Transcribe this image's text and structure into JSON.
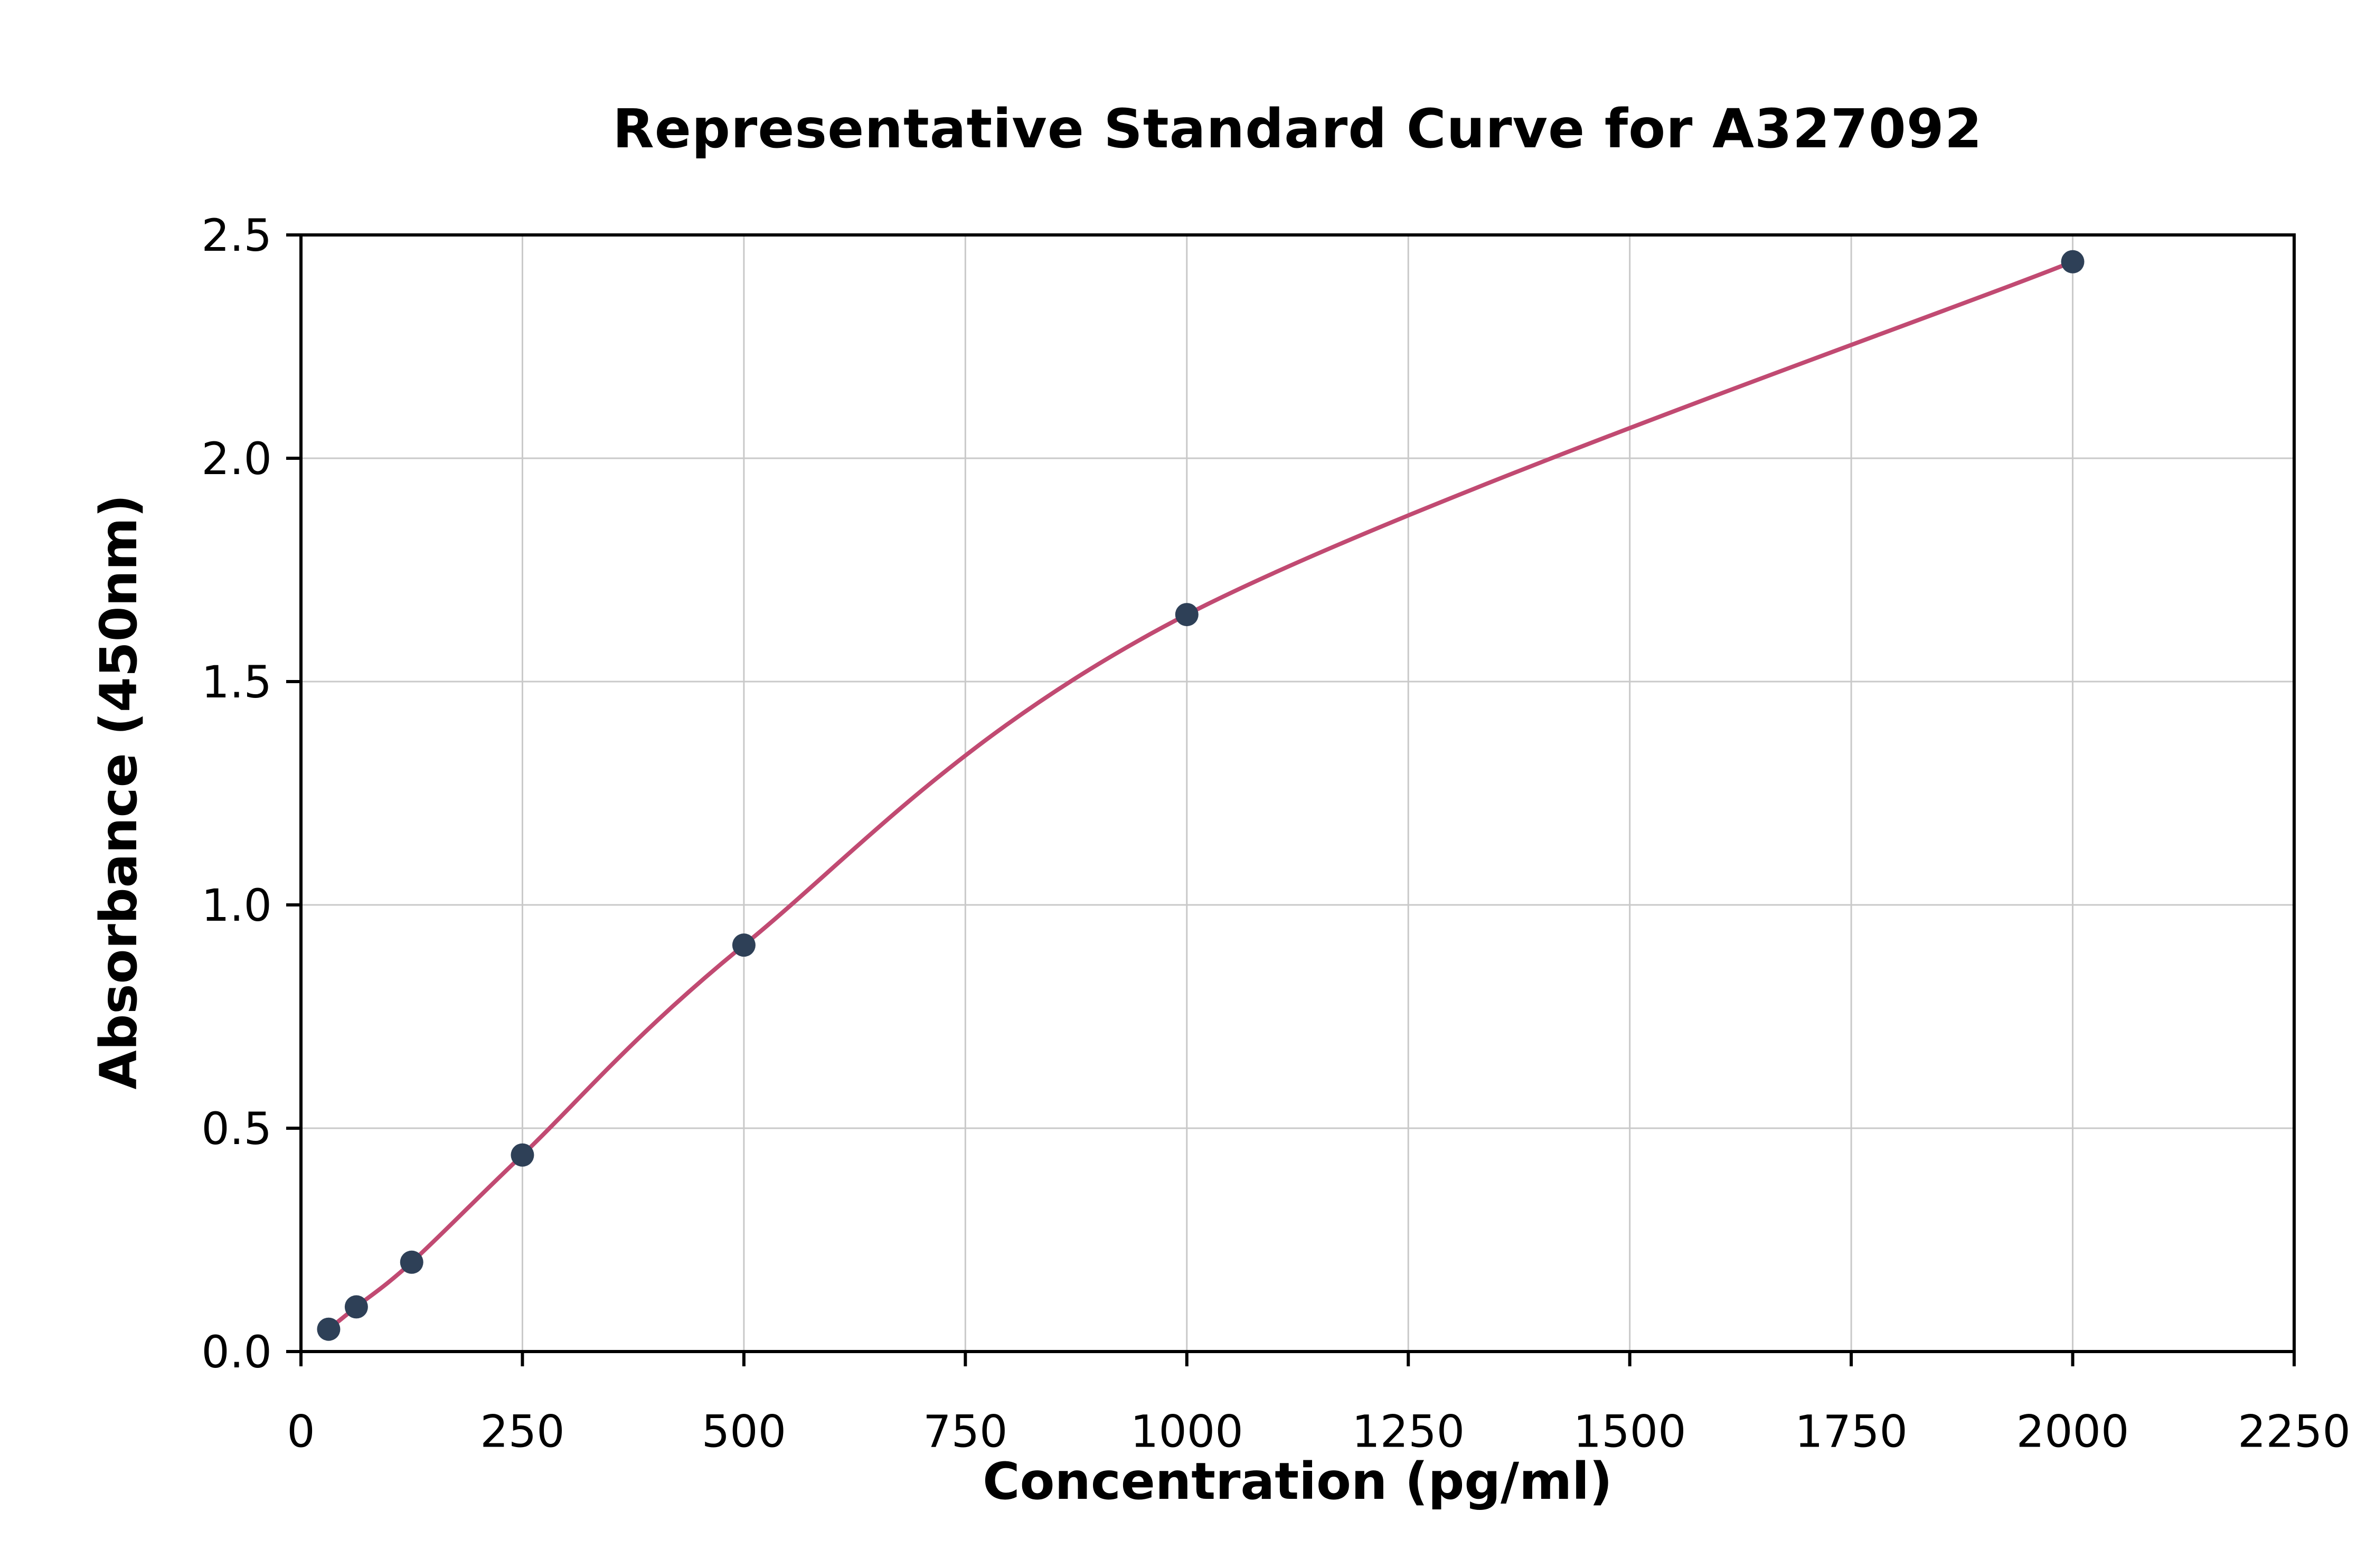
{
  "chart_data": {
    "type": "line",
    "title": "Representative Standard Curve for A327092",
    "xlabel": "Concentration (pg/ml)",
    "ylabel": "Absorbance (450nm)",
    "x": [
      31.25,
      62.5,
      125,
      250,
      500,
      1000,
      2000
    ],
    "y": [
      0.05,
      0.1,
      0.2,
      0.44,
      0.91,
      1.65,
      2.44
    ],
    "xlim": [
      0,
      2250
    ],
    "ylim": [
      0,
      2.5
    ],
    "xticks": [
      0,
      250,
      500,
      750,
      1000,
      1250,
      1500,
      1750,
      2000,
      2250
    ],
    "xtick_labels": [
      "0",
      "250",
      "500",
      "750",
      "1000",
      "1250",
      "1500",
      "1750",
      "2000",
      "2250"
    ],
    "yticks": [
      0.0,
      0.5,
      1.0,
      1.5,
      2.0,
      2.5
    ],
    "ytick_labels": [
      "0.0",
      "0.5",
      "1.0",
      "1.5",
      "2.0",
      "2.5"
    ],
    "grid": true,
    "legend": "none",
    "line_color": "#c14a72",
    "marker_color": "#2e4057",
    "grid_color": "#c9c9c9",
    "spine_color": "#000000",
    "background_color": "#ffffff"
  }
}
